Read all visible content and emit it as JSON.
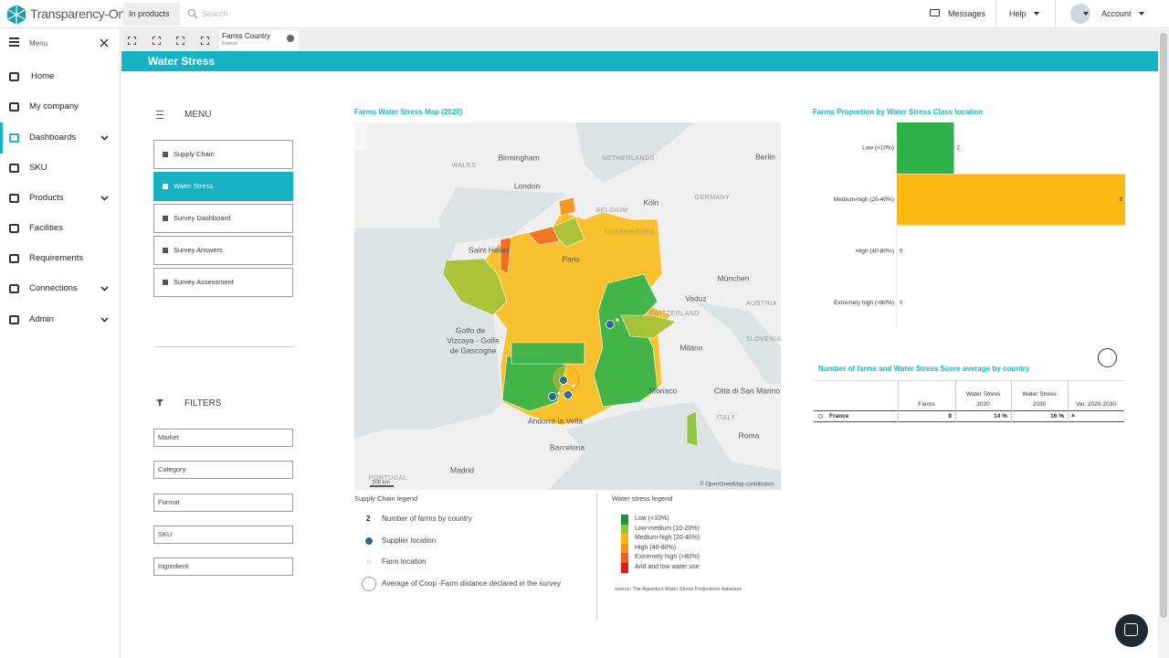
{
  "header": {
    "logo": "Transparency-One",
    "scope": "In products",
    "search": "Search",
    "messages": "Messages",
    "help": "Help",
    "account": "Account"
  },
  "sidebar": {
    "menu_label": "Menu",
    "items": [
      "Home",
      "My company",
      "Dashboards",
      "SKU",
      "Products",
      "Facilities",
      "Requirements",
      "Connections",
      "Admin"
    ]
  },
  "tab": {
    "title": "Farms Country",
    "subtitle": "France"
  },
  "page_title": "Water Stress",
  "dashboard_menu": {
    "title": "MENU",
    "items": [
      "Supply Chain",
      "Water Stress",
      "Survey Dashboard",
      "Survey Answers",
      "Survey Assessment"
    ],
    "filters_title": "FILTERS",
    "filters": [
      "Market",
      "Category",
      "Format",
      "SKU",
      "Ingredient"
    ]
  },
  "map": {
    "title": "Farms Water Stress Map (2020)",
    "labels": [
      "WALES",
      "Birmingham",
      "NETHERLANDS",
      "Berlin",
      "London",
      "Köln",
      "GERMANY",
      "BELGIUM",
      "LUXEMBOURG",
      "Saint Helier",
      "Paris",
      "München",
      "Vaduz",
      "AUSTRIA",
      "SWITZERLAND",
      "Golfo de",
      "Vizcaya - Golfe",
      "de Gascogne",
      "Milano",
      "SLOVENIA",
      "Città di San Marino",
      "Monaco",
      "ITALY",
      "Andorra la Vella",
      "Roma",
      "Barcelona",
      "PORTUGAL",
      "Madrid",
      "200 km",
      "© OpenStreetMap contributors"
    ]
  },
  "chart_data": {
    "type": "bar",
    "orientation": "horizontal",
    "title": "Farms Proportion by Water Stress Class location",
    "categories": [
      "Low (<10%)",
      "Medium-high (20-40%)",
      "High (40-80%)",
      "Extremely high (>80%)"
    ],
    "values": [
      2,
      8,
      0,
      0
    ],
    "colors": [
      "#2db34a",
      "#fdb913",
      "#f7941d",
      "#f15a24"
    ],
    "xlim": [
      0,
      8
    ]
  },
  "table": {
    "title": "Number of farms and Water Stress Score average by country",
    "headers": [
      "Farms",
      "Water Stress 2020",
      "Water Stress 2030",
      "Var. 2020-2030"
    ],
    "rows": [
      [
        "France",
        "8",
        "14 %",
        "16 %"
      ]
    ]
  },
  "supply_legend": {
    "title": "Supply Chain legend",
    "count": "2",
    "items": [
      "Number of farms by country",
      "Supplier location",
      "Farm location",
      "Average of Coop -Farm distance declared in the survey"
    ]
  },
  "water_legend": {
    "title": "Water stress legend",
    "items": [
      {
        "label": "Low (<10%)",
        "color": "#1a9641"
      },
      {
        "label": "Low-medium (10-20%)",
        "color": "#8cc63f"
      },
      {
        "label": "Medium-high (20-40%)",
        "color": "#fdb913"
      },
      {
        "label": "High (40-80%)",
        "color": "#f7941d"
      },
      {
        "label": "Extremely high (>80%)",
        "color": "#f15a24"
      },
      {
        "label": "Arid and low water use",
        "color": "#e31a1c"
      }
    ],
    "source": "source: The Aqueduct Water Stress Projections database"
  }
}
